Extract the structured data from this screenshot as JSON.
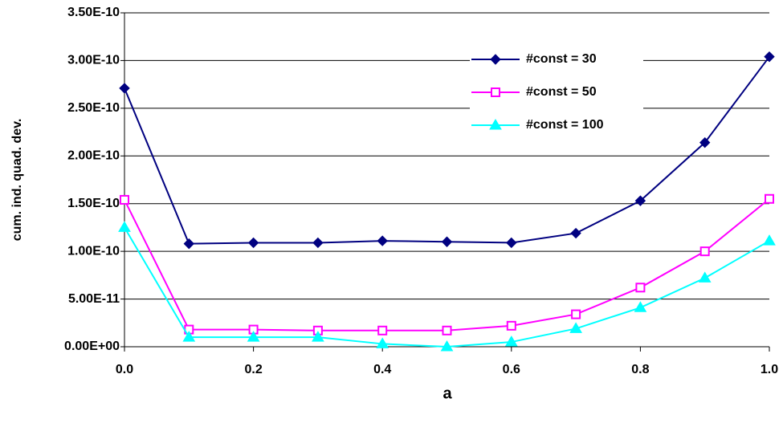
{
  "chart_data": {
    "type": "line",
    "x_label": "a",
    "y_label": "cum. ind. quad. dev.",
    "x": [
      0.0,
      0.1,
      0.2,
      0.3,
      0.4,
      0.5,
      0.6,
      0.7,
      0.8,
      0.9,
      1.0
    ],
    "series": [
      {
        "name": "#const = 30",
        "color": "#000080",
        "marker": "diamond",
        "values": [
          2.71e-10,
          1.08e-10,
          1.09e-10,
          1.09e-10,
          1.11e-10,
          1.1e-10,
          1.09e-10,
          1.19e-10,
          1.53e-10,
          2.14e-10,
          3.04e-10
        ]
      },
      {
        "name": "#const = 50",
        "color": "#ff00ff",
        "marker": "square",
        "values": [
          1.54e-10,
          1.8e-11,
          1.8e-11,
          1.7e-11,
          1.7e-11,
          1.7e-11,
          2.2e-11,
          3.4e-11,
          6.2e-11,
          1e-10,
          1.55e-10
        ]
      },
      {
        "name": "#const = 100",
        "color": "#00ffff",
        "marker": "triangle",
        "values": [
          1.25e-10,
          1e-11,
          1e-11,
          1e-11,
          3e-12,
          0.0,
          5e-12,
          1.9e-11,
          4.1e-11,
          7.2e-11,
          1.11e-10
        ]
      }
    ],
    "xlim": [
      0,
      1
    ],
    "xticks": [
      {
        "value": 0,
        "label": "0.0"
      },
      0.2,
      0.4,
      0.6,
      0.8,
      {
        "value": 1,
        "label": "1.0"
      }
    ],
    "ylim": [
      0,
      3.5e-10
    ],
    "yticks": [
      {
        "value": 0,
        "label": "0.00E+00"
      },
      {
        "value": 5e-11,
        "label": "5.00E-11"
      },
      {
        "value": 1e-10,
        "label": "1.00E-10"
      },
      {
        "value": 1.5e-10,
        "label": "1.50E-10"
      },
      {
        "value": 2e-10,
        "label": "2.00E-10"
      },
      {
        "value": 2.5e-10,
        "label": "2.50E-10"
      },
      {
        "value": 3e-10,
        "label": "3.00E-10"
      },
      {
        "value": 3.5e-10,
        "label": "3.50E-10"
      }
    ],
    "grid": true,
    "legend": "top-right"
  }
}
